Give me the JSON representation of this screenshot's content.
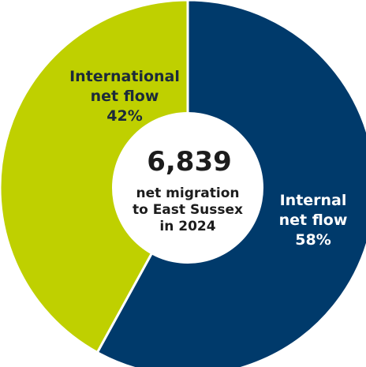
{
  "chart_data": {
    "type": "pie",
    "title": "",
    "center": {
      "value": "6,839",
      "line1": "net migration",
      "line2": "to East Sussex",
      "line3": "in 2024"
    },
    "slices": [
      {
        "name_line1": "Internal",
        "name_line2": "net flow",
        "value": 58,
        "value_label": "58%",
        "color": "#003a6b",
        "text_color": "#ffffff"
      },
      {
        "name_line1": "International",
        "name_line2": "net flow",
        "value": 42,
        "value_label": "42%",
        "color": "#bfd000",
        "text_color": "#1c2a3a"
      }
    ]
  }
}
